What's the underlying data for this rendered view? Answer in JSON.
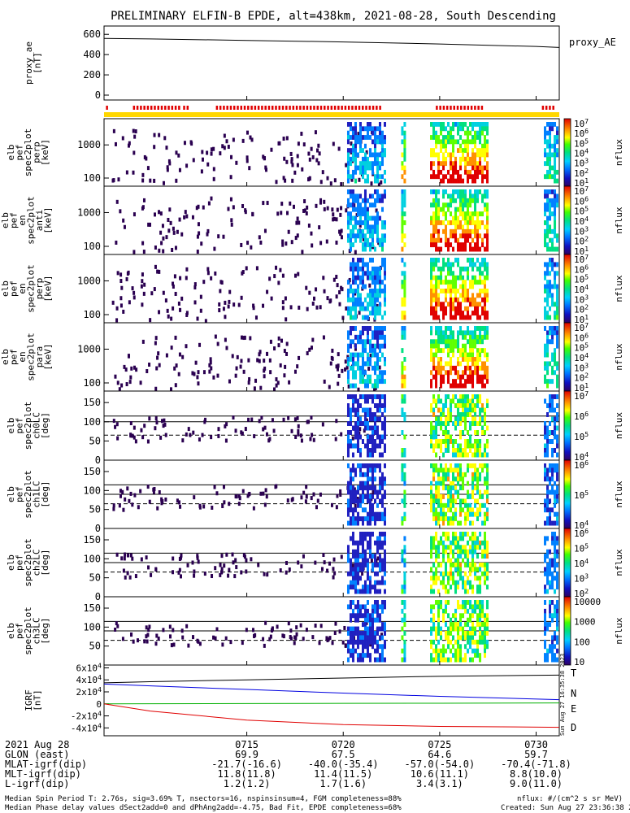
{
  "title": "PRELIMINARY ELFIN-B EPDE, alt=438km, 2021-08-28, South Descending",
  "colors": {
    "axis": "#000000",
    "flag_bar": "#ffd700",
    "flag_marks": "#e00000",
    "grf_T": "#000000",
    "grf_N": "#0000e0",
    "grf_E": "#00b000",
    "grf_D": "#e00000"
  },
  "chart_data": [
    {
      "type": "line",
      "name": "proxy_ae",
      "ylabel": "proxy_ae\n[nT]",
      "legend": "proxy_AE",
      "yticks": [
        "0",
        "200",
        "400",
        "600"
      ],
      "ylim": [
        0,
        650
      ],
      "x_minutes": [
        7.6,
        10,
        15,
        20,
        25,
        30,
        31.2
      ],
      "values": [
        560,
        555,
        540,
        525,
        505,
        480,
        470
      ]
    },
    {
      "type": "heatmap",
      "name": "elb_pef_spec2plot_perp",
      "ylabel": "elb\npef\nspec2plot\nperp\n[keV]",
      "yticks": [
        "100",
        "1000"
      ],
      "ylog": true,
      "colorbar_ticks": [
        "10^1",
        "10^2",
        "10^3",
        "10^4",
        "10^5",
        "10^6",
        "10^7"
      ],
      "colorbar_label": "nflux"
    },
    {
      "type": "heatmap",
      "name": "elb_pef_spec2plot_anti",
      "ylabel": "elb\npef\nen\nspec2plot\nanti\n[keV]",
      "yticks": [
        "100",
        "1000"
      ],
      "ylog": true,
      "colorbar_ticks": [
        "10^1",
        "10^2",
        "10^3",
        "10^4",
        "10^5",
        "10^6",
        "10^7"
      ],
      "colorbar_label": "nflux"
    },
    {
      "type": "heatmap",
      "name": "elb_pef_en_spec2plot_perp",
      "ylabel": "elb\npef\nen\nspec2plot\nperp\n[keV]",
      "yticks": [
        "100",
        "1000"
      ],
      "ylog": true,
      "colorbar_ticks": [
        "10^1",
        "10^2",
        "10^3",
        "10^4",
        "10^5",
        "10^6",
        "10^7"
      ],
      "colorbar_label": "nflux"
    },
    {
      "type": "heatmap",
      "name": "elb_pef_en_spec2plot_para",
      "ylabel": "elb\npef\nen\nspec2plot\npara\n[keV]",
      "yticks": [
        "100",
        "1000"
      ],
      "ylog": true,
      "colorbar_ticks": [
        "10^1",
        "10^2",
        "10^3",
        "10^4",
        "10^5",
        "10^6",
        "10^7"
      ],
      "colorbar_label": "nflux"
    },
    {
      "type": "heatmap",
      "name": "elb_pef_spec2plot_ch0LC",
      "ylabel": "elb\npef\nspec2plot\nch0LC\n[deg]",
      "yticks": [
        "0",
        "50",
        "100",
        "150"
      ],
      "ylim": [
        0,
        180
      ],
      "reference_lines": [
        115,
        100,
        65
      ],
      "colorbar_ticks": [
        "10^4",
        "10^5",
        "10^6",
        "10^7"
      ],
      "colorbar_label": "nflux"
    },
    {
      "type": "heatmap",
      "name": "elb_pef_spec2plot_ch1LC",
      "ylabel": "elb\npef\nspec2plot\nch1LC\n[deg]",
      "yticks": [
        "0",
        "50",
        "100",
        "150"
      ],
      "ylim": [
        0,
        180
      ],
      "reference_lines": [
        115,
        90,
        65
      ],
      "colorbar_ticks": [
        "10^4",
        "10^5",
        "10^6"
      ],
      "colorbar_label": "nflux"
    },
    {
      "type": "heatmap",
      "name": "elb_pef_spec2plot_ch2LC",
      "ylabel": "elb\npef\nspec2plot\nch2LC\n[deg]",
      "yticks": [
        "0",
        "50",
        "100",
        "150"
      ],
      "ylim": [
        0,
        180
      ],
      "reference_lines": [
        115,
        90,
        65
      ],
      "colorbar_ticks": [
        "10^2",
        "10^3",
        "10^4",
        "10^5",
        "10^6"
      ],
      "colorbar_label": "nflux"
    },
    {
      "type": "heatmap",
      "name": "elb_pef_spec2plot_ch3LC",
      "ylabel": "elb\npef\nspec2plot\nch3LC\n[deg]",
      "yticks": [
        "50",
        "100",
        "150"
      ],
      "ylim": [
        0,
        180
      ],
      "reference_lines": [
        115,
        90,
        65
      ],
      "colorbar_ticks": [
        "10",
        "100",
        "1000",
        "10000"
      ],
      "colorbar_label": "nflux"
    },
    {
      "type": "line",
      "name": "IGRF",
      "ylabel": "IGRF\n[nT]",
      "yticks": [
        "-4x10^4",
        "-2x10^4",
        "0",
        "2x10^4",
        "4x10^4",
        "6x10^4"
      ],
      "ylim": [
        -45000,
        62000
      ],
      "x_minutes": [
        7.6,
        10,
        15,
        20,
        25,
        31.2
      ],
      "series": [
        {
          "name": "T",
          "values": [
            35000,
            37000,
            40000,
            43000,
            46000,
            48000
          ]
        },
        {
          "name": "N",
          "values": [
            33000,
            30000,
            24000,
            18000,
            12500,
            7000
          ]
        },
        {
          "name": "E",
          "values": [
            0,
            200,
            500,
            800,
            1100,
            1500
          ]
        },
        {
          "name": "D",
          "values": [
            0,
            -12000,
            -27000,
            -34500,
            -37500,
            -39000
          ]
        }
      ]
    }
  ],
  "flag_marks_minutes": [
    [
      7.7,
      7.8
    ],
    [
      9.1,
      11.5
    ],
    [
      11.7,
      12.0
    ],
    [
      13.4,
      21.9
    ],
    [
      24.8,
      27.3
    ],
    [
      30.3,
      30.9
    ]
  ],
  "time_ticks": [
    {
      "label": "0715",
      "minute": 15
    },
    {
      "label": "0720",
      "minute": 20
    },
    {
      "label": "0725",
      "minute": 25
    },
    {
      "label": "0730",
      "minute": 30
    }
  ],
  "time_range_minutes": [
    7.6,
    31.2
  ],
  "footer_rows": [
    {
      "label": "2021 Aug 28",
      "values": [
        "0715",
        "0720",
        "0725",
        "0730"
      ]
    },
    {
      "label": "GLON (east)",
      "values": [
        "69.9",
        "67.5",
        "64.6",
        "59.7"
      ]
    },
    {
      "label": "MLAT-igrf(dip)",
      "values": [
        "-21.7(-16.6)",
        "-40.0(-35.4)",
        "-57.0(-54.0)",
        "-70.4(-71.8)"
      ]
    },
    {
      "label": "MLT-igrf(dip)",
      "values": [
        "11.8(11.8)",
        "11.4(11.5)",
        "10.6(11.1)",
        "8.8(10.0)"
      ]
    },
    {
      "label": "L-igrf(dip)",
      "values": [
        "1.2(1.2)",
        "1.7(1.6)",
        "3.4(3.1)",
        "9.0(11.0)"
      ]
    }
  ],
  "notes": {
    "line1": "Median Spin Period T: 2.76s, sig=3.69% T, nsectors=16, nspinsinsum=4, FGM completeness=88%",
    "line2": "Median Phase delay values dSect2add=0 and dPhAng2add=-4.75, Bad Fit, EPDE completeness=68%",
    "units": "nflux: #/(cm^2 s sr MeV)",
    "created": "Created: Sun Aug 27 23:36:38 2023",
    "vertical_stamp": "Sun Aug 27 16:35:38 2023"
  }
}
